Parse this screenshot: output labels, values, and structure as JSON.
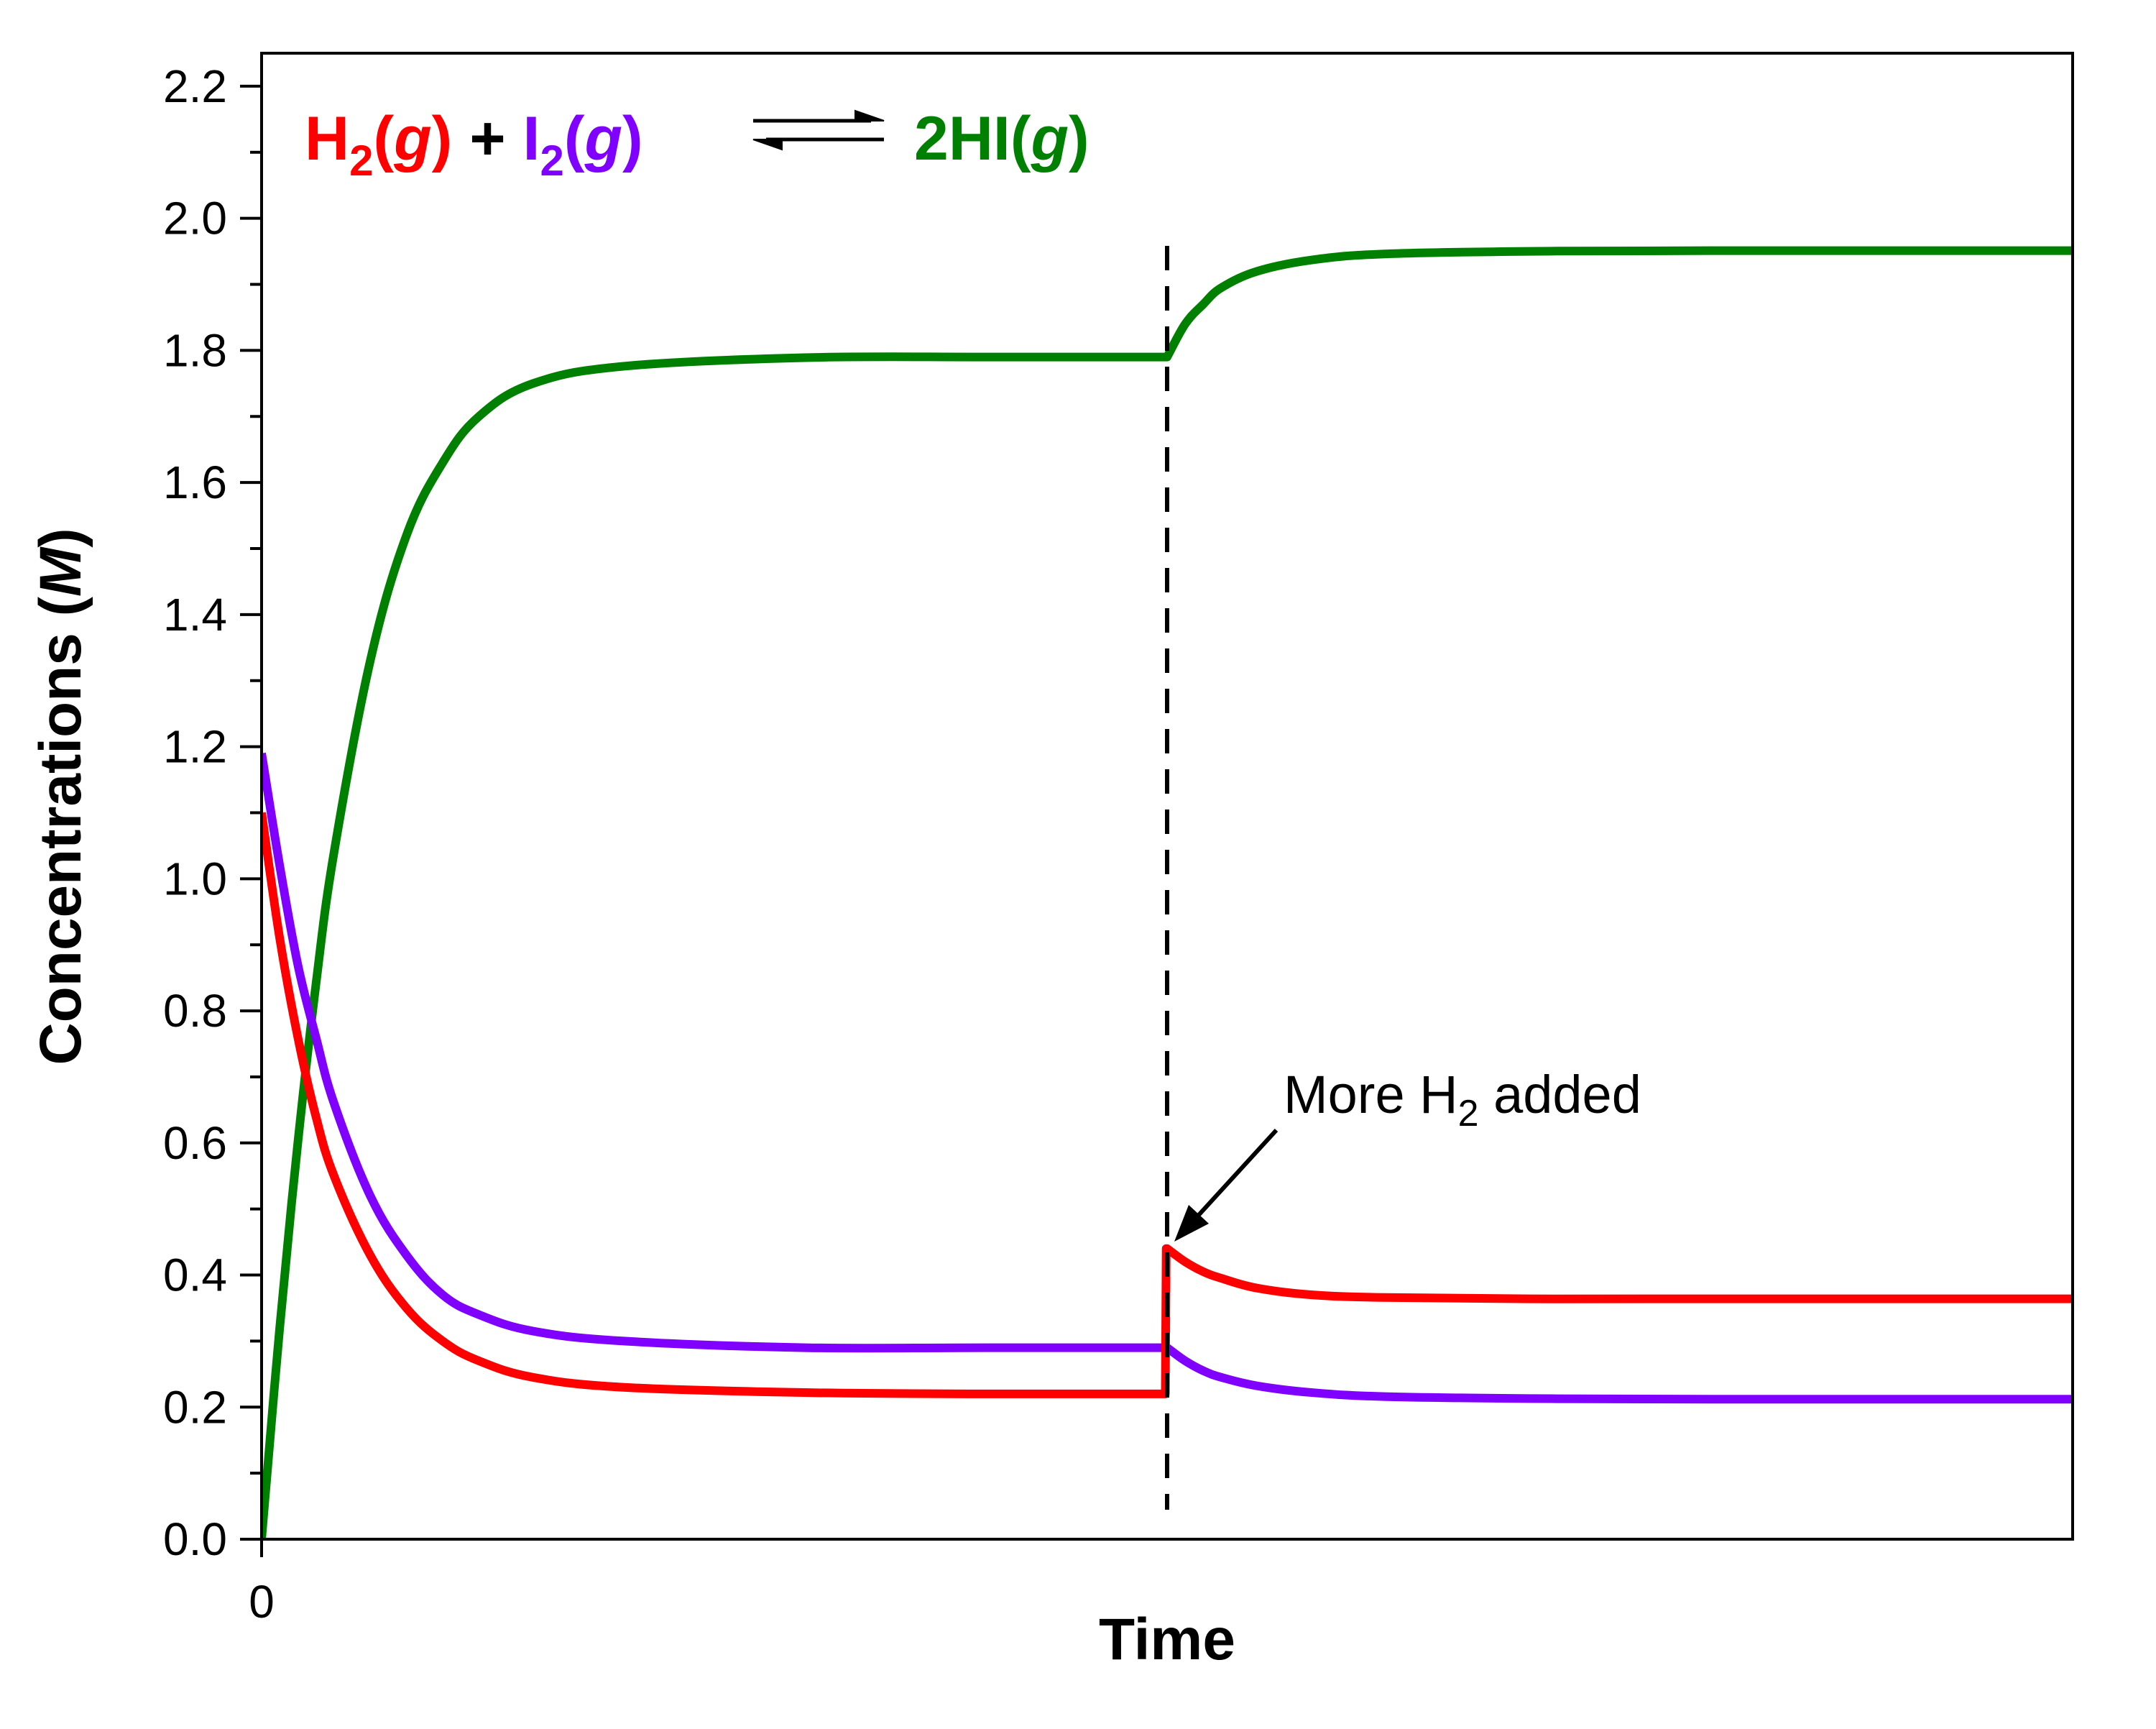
{
  "chart_data": {
    "type": "line",
    "xlabel": "Time",
    "ylabel_prefix": "Concentrations (",
    "ylabel_unit": "M",
    "ylabel_suffix": ")",
    "x_tick_label": "0",
    "ylim": [
      0,
      2.25
    ],
    "xlim": [
      0,
      100
    ],
    "y_ticks": [
      "0.0",
      "0.2",
      "0.4",
      "0.6",
      "0.8",
      "1.0",
      "1.2",
      "1.4",
      "1.6",
      "1.8",
      "2.0",
      "2.2"
    ],
    "y_tick_values": [
      0.0,
      0.2,
      0.4,
      0.6,
      0.8,
      1.0,
      1.2,
      1.4,
      1.6,
      1.8,
      2.0,
      2.2
    ],
    "grid": false,
    "colors": {
      "H2": "#ff0000",
      "I2": "#8000ff",
      "HI": "#008000",
      "axis": "#000000"
    },
    "equation": {
      "h2_main": "H",
      "h2_sub": "2",
      "h2_open": "(",
      "h2_state": "g",
      "h2_close": ")",
      "plus": "+",
      "i2_main": "I",
      "i2_sub": "2",
      "i2_open": "(",
      "i2_state": "g",
      "i2_close": ")",
      "hi_main": "2HI",
      "hi_open": "(",
      "hi_state": "g",
      "hi_close": ")"
    },
    "annotation": {
      "pre": "More H",
      "sub": "2",
      "post": " added",
      "x": 50,
      "y": 0.44
    },
    "event_x": 50,
    "series": [
      {
        "key": "HI",
        "x": [
          0,
          1,
          2,
          3,
          4,
          6,
          8,
          10,
          12,
          15,
          20,
          30,
          40,
          49.9,
          50,
          51,
          52,
          53,
          55,
          58,
          62,
          70,
          80,
          90,
          100
        ],
        "values": [
          0.0,
          0.32,
          0.6,
          0.84,
          1.04,
          1.33,
          1.52,
          1.63,
          1.7,
          1.75,
          1.776,
          1.789,
          1.79,
          1.79,
          1.79,
          1.84,
          1.87,
          1.895,
          1.92,
          1.937,
          1.946,
          1.95,
          1.951,
          1.951,
          1.951
        ]
      },
      {
        "key": "H2",
        "x": [
          0,
          1,
          2,
          3,
          4,
          6,
          8,
          10,
          12,
          15,
          20,
          30,
          40,
          49.9,
          49.95,
          50,
          51,
          52,
          53,
          55,
          58,
          62,
          70,
          80,
          90,
          100
        ],
        "values": [
          1.1,
          0.91,
          0.76,
          0.64,
          0.55,
          0.43,
          0.35,
          0.3,
          0.27,
          0.245,
          0.23,
          0.222,
          0.22,
          0.22,
          0.44,
          0.44,
          0.42,
          0.405,
          0.395,
          0.38,
          0.37,
          0.366,
          0.364,
          0.364,
          0.364,
          0.364
        ]
      },
      {
        "key": "I2",
        "x": [
          0,
          1,
          2,
          3,
          4,
          6,
          8,
          10,
          12,
          15,
          20,
          30,
          40,
          49.9,
          50,
          51,
          52,
          53,
          55,
          58,
          62,
          70,
          80,
          90,
          100
        ],
        "values": [
          1.19,
          1.02,
          0.87,
          0.76,
          0.66,
          0.52,
          0.43,
          0.37,
          0.34,
          0.315,
          0.3,
          0.29,
          0.29,
          0.29,
          0.29,
          0.27,
          0.255,
          0.245,
          0.232,
          0.222,
          0.216,
          0.213,
          0.212,
          0.212,
          0.212
        ]
      }
    ]
  }
}
